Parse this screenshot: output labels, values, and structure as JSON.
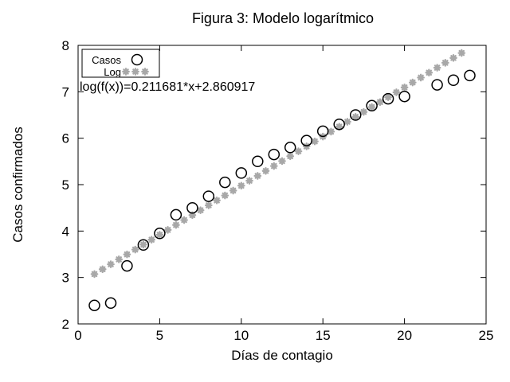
{
  "chart_data": {
    "type": "scatter",
    "title": "Figura 3: Modelo logarítmico",
    "xlabel": "Días de contagio",
    "ylabel": "Casos confirmados",
    "xlim": [
      0,
      25
    ],
    "ylim": [
      2,
      8
    ],
    "xticks": [
      0,
      5,
      10,
      15,
      20,
      25
    ],
    "yticks": [
      2,
      3,
      4,
      5,
      6,
      7,
      8
    ],
    "grid": false,
    "legend_position": "top-left-inside",
    "annotation": "log(f(x))=0.211681*x+2.860917",
    "colors": {
      "points": "#000000",
      "fit": "#a8a8a8",
      "border": "#000000",
      "background": "#ffffff"
    },
    "series": [
      {
        "name": "Casos",
        "marker": "open-circle",
        "color": "#000000",
        "points": [
          [
            1,
            2.4
          ],
          [
            2,
            2.45
          ],
          [
            3,
            3.25
          ],
          [
            4,
            3.7
          ],
          [
            5,
            3.95
          ],
          [
            6,
            4.35
          ],
          [
            7,
            4.5
          ],
          [
            8,
            4.75
          ],
          [
            9,
            5.05
          ],
          [
            10,
            5.25
          ],
          [
            11,
            5.5
          ],
          [
            12,
            5.65
          ],
          [
            13,
            5.8
          ],
          [
            14,
            5.95
          ],
          [
            15,
            6.15
          ],
          [
            16,
            6.3
          ],
          [
            17,
            6.5
          ],
          [
            18,
            6.7
          ],
          [
            19,
            6.85
          ],
          [
            20,
            6.9
          ],
          [
            22,
            7.15
          ],
          [
            23,
            7.25
          ],
          [
            24,
            7.35
          ]
        ]
      },
      {
        "name": "Log",
        "marker": "asterisk",
        "color": "#a8a8a8",
        "fit_line": {
          "equation": "log(f(x))=0.211681*x+2.860917",
          "slope": 0.211681,
          "intercept": 2.860917,
          "x_start": 1,
          "x_end": 23.5,
          "x_step": 0.5
        }
      }
    ]
  }
}
